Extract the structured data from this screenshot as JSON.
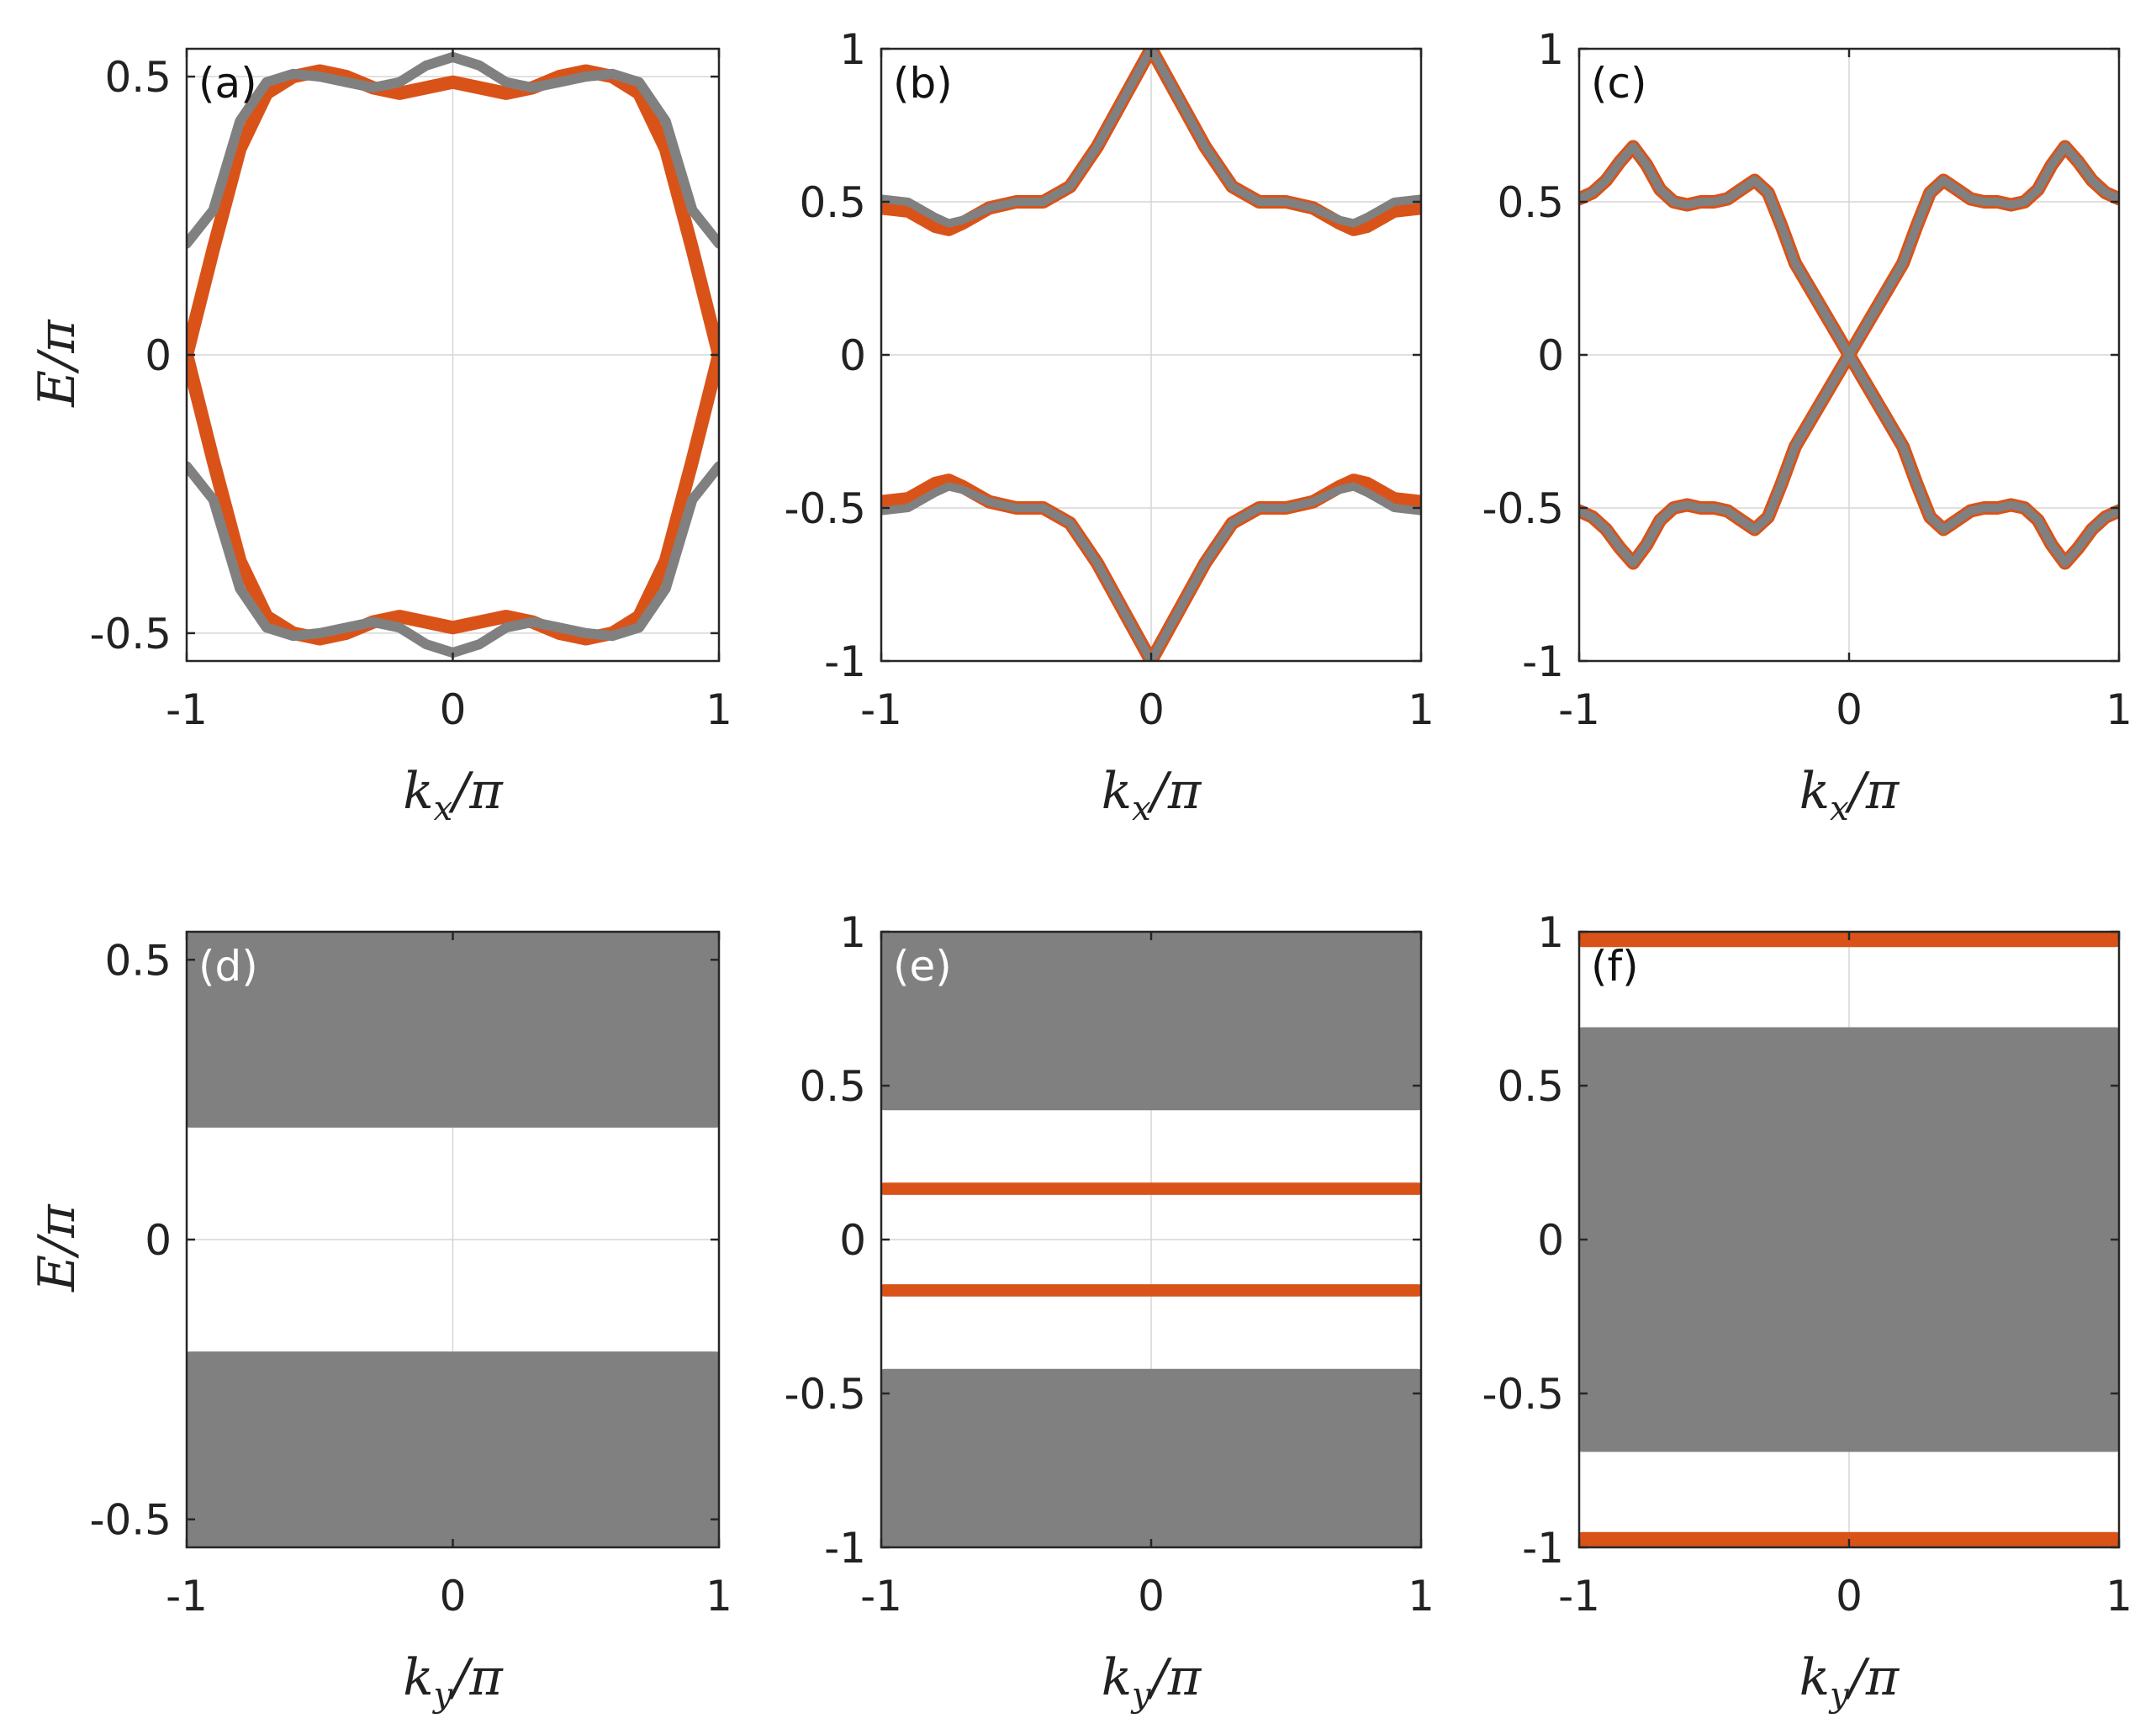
{
  "colors": {
    "orange": "#d95319",
    "gray": "#808080",
    "blue": "#0072bd",
    "frame": "#262626",
    "grid": "#d6d6d6"
  },
  "chart_data": [
    {
      "id": "a",
      "type": "line",
      "label": "(a)",
      "label_color": "#111111",
      "xlabel": "k_x/π",
      "ylabel": "E/π",
      "show_ylabel": true,
      "xlim": [
        -1,
        1
      ],
      "ylim": [
        -0.55,
        0.55
      ],
      "xticks": [
        -1,
        0,
        1
      ],
      "xtick_labels": [
        "-1",
        "0",
        "1"
      ],
      "yticks": [
        -0.5,
        0,
        0.5
      ],
      "ytick_labels": [
        "-0.5",
        "0",
        "0.5"
      ],
      "series": [
        {
          "name": "edge-state-upper",
          "color": "orange",
          "width": 16,
          "x": [
            -1.0,
            -0.9,
            -0.8,
            -0.7,
            -0.6,
            -0.5,
            -0.4,
            -0.3,
            -0.2,
            -0.1,
            0.0,
            0.1,
            0.2,
            0.3,
            0.4,
            0.5,
            0.6,
            0.7,
            0.8,
            0.9,
            1.0
          ],
          "y": [
            0.0,
            0.19,
            0.37,
            0.47,
            0.5,
            0.51,
            0.5,
            0.48,
            0.47,
            0.48,
            0.49,
            0.48,
            0.47,
            0.48,
            0.5,
            0.51,
            0.5,
            0.47,
            0.37,
            0.19,
            0.0
          ]
        },
        {
          "name": "edge-state-lower",
          "color": "orange",
          "width": 16,
          "x": [
            -1.0,
            -0.9,
            -0.8,
            -0.7,
            -0.6,
            -0.5,
            -0.4,
            -0.3,
            -0.2,
            -0.1,
            0.0,
            0.1,
            0.2,
            0.3,
            0.4,
            0.5,
            0.6,
            0.7,
            0.8,
            0.9,
            1.0
          ],
          "y": [
            0.0,
            -0.19,
            -0.37,
            -0.47,
            -0.5,
            -0.51,
            -0.5,
            -0.48,
            -0.47,
            -0.48,
            -0.49,
            -0.48,
            -0.47,
            -0.48,
            -0.5,
            -0.51,
            -0.5,
            -0.47,
            -0.37,
            -0.19,
            0.0
          ]
        },
        {
          "name": "bulk-band-upper",
          "color": "gray",
          "width": 12,
          "x": [
            -1.0,
            -0.9,
            -0.8,
            -0.7,
            -0.6,
            -0.5,
            -0.4,
            -0.3,
            -0.2,
            -0.1,
            0.0,
            0.1,
            0.2,
            0.3,
            0.4,
            0.5,
            0.6,
            0.7,
            0.8,
            0.9,
            1.0
          ],
          "y": [
            0.2,
            0.26,
            0.42,
            0.49,
            0.505,
            0.5,
            0.49,
            0.48,
            0.49,
            0.52,
            0.535,
            0.52,
            0.49,
            0.48,
            0.49,
            0.5,
            0.505,
            0.49,
            0.42,
            0.26,
            0.2
          ]
        },
        {
          "name": "bulk-band-lower",
          "color": "gray",
          "width": 12,
          "x": [
            -1.0,
            -0.9,
            -0.8,
            -0.7,
            -0.6,
            -0.5,
            -0.4,
            -0.3,
            -0.2,
            -0.1,
            0.0,
            0.1,
            0.2,
            0.3,
            0.4,
            0.5,
            0.6,
            0.7,
            0.8,
            0.9,
            1.0
          ],
          "y": [
            -0.2,
            -0.26,
            -0.42,
            -0.49,
            -0.505,
            -0.5,
            -0.49,
            -0.48,
            -0.49,
            -0.52,
            -0.535,
            -0.52,
            -0.49,
            -0.48,
            -0.49,
            -0.5,
            -0.505,
            -0.49,
            -0.42,
            -0.26,
            -0.2
          ]
        }
      ],
      "bands": []
    },
    {
      "id": "b",
      "type": "line",
      "label": "(b)",
      "label_color": "#111111",
      "xlabel": "k_x/π",
      "ylabel": "E/π",
      "show_ylabel": false,
      "xlim": [
        -1,
        1
      ],
      "ylim": [
        -1,
        1
      ],
      "xticks": [
        -1,
        0,
        1
      ],
      "xtick_labels": [
        "-1",
        "0",
        "1"
      ],
      "yticks": [
        -1,
        -0.5,
        0,
        0.5,
        1
      ],
      "ytick_labels": [
        "-1",
        "-0.5",
        "0",
        "0.5",
        "1"
      ],
      "series": [
        {
          "name": "band-upper-orange",
          "color": "orange",
          "width": 16,
          "x": [
            -1.0,
            -0.9,
            -0.8,
            -0.75,
            -0.7,
            -0.6,
            -0.5,
            -0.4,
            -0.3,
            -0.2,
            -0.1,
            0.0,
            0.1,
            0.2,
            0.3,
            0.4,
            0.5,
            0.6,
            0.7,
            0.75,
            0.8,
            0.9,
            1.0
          ],
          "y": [
            0.48,
            0.47,
            0.42,
            0.41,
            0.43,
            0.48,
            0.5,
            0.5,
            0.55,
            0.68,
            0.84,
            1.0,
            0.84,
            0.68,
            0.55,
            0.5,
            0.5,
            0.48,
            0.43,
            0.41,
            0.42,
            0.47,
            0.48
          ]
        },
        {
          "name": "band-upper-gray",
          "color": "gray",
          "width": 10,
          "x": [
            -1.0,
            -0.9,
            -0.8,
            -0.75,
            -0.7,
            -0.6,
            -0.5,
            -0.4,
            -0.3,
            -0.2,
            -0.1,
            0.0,
            0.1,
            0.2,
            0.3,
            0.4,
            0.5,
            0.6,
            0.7,
            0.75,
            0.8,
            0.9,
            1.0
          ],
          "y": [
            0.51,
            0.5,
            0.45,
            0.43,
            0.44,
            0.48,
            0.5,
            0.5,
            0.55,
            0.68,
            0.84,
            1.0,
            0.84,
            0.68,
            0.55,
            0.5,
            0.5,
            0.48,
            0.44,
            0.43,
            0.45,
            0.5,
            0.51
          ]
        },
        {
          "name": "band-lower-orange",
          "color": "orange",
          "width": 16,
          "x": [
            -1.0,
            -0.9,
            -0.8,
            -0.75,
            -0.7,
            -0.6,
            -0.5,
            -0.4,
            -0.3,
            -0.2,
            -0.1,
            0.0,
            0.1,
            0.2,
            0.3,
            0.4,
            0.5,
            0.6,
            0.7,
            0.75,
            0.8,
            0.9,
            1.0
          ],
          "y": [
            -0.48,
            -0.47,
            -0.42,
            -0.41,
            -0.43,
            -0.48,
            -0.5,
            -0.5,
            -0.55,
            -0.68,
            -0.84,
            -1.0,
            -0.84,
            -0.68,
            -0.55,
            -0.5,
            -0.5,
            -0.48,
            -0.43,
            -0.41,
            -0.42,
            -0.47,
            -0.48
          ]
        },
        {
          "name": "band-lower-gray",
          "color": "gray",
          "width": 10,
          "x": [
            -1.0,
            -0.9,
            -0.8,
            -0.75,
            -0.7,
            -0.6,
            -0.5,
            -0.4,
            -0.3,
            -0.2,
            -0.1,
            0.0,
            0.1,
            0.2,
            0.3,
            0.4,
            0.5,
            0.6,
            0.7,
            0.75,
            0.8,
            0.9,
            1.0
          ],
          "y": [
            -0.51,
            -0.5,
            -0.45,
            -0.43,
            -0.44,
            -0.48,
            -0.5,
            -0.5,
            -0.55,
            -0.68,
            -0.84,
            -1.0,
            -0.84,
            -0.68,
            -0.55,
            -0.5,
            -0.5,
            -0.48,
            -0.44,
            -0.43,
            -0.45,
            -0.5,
            -0.51
          ]
        }
      ],
      "bands": []
    },
    {
      "id": "c",
      "type": "line",
      "label": "(c)",
      "label_color": "#111111",
      "xlabel": "k_x/π",
      "ylabel": "E/π",
      "show_ylabel": false,
      "xlim": [
        -1,
        1
      ],
      "ylim": [
        -1,
        1
      ],
      "xticks": [
        -1,
        0,
        1
      ],
      "xtick_labels": [
        "-1",
        "0",
        "1"
      ],
      "yticks": [
        -1,
        -0.5,
        0,
        0.5,
        1
      ],
      "ytick_labels": [
        "-1",
        "-0.5",
        "0",
        "0.5",
        "1"
      ],
      "series": [
        {
          "name": "band-crossing-down-orange",
          "color": "orange",
          "width": 16,
          "x": [
            -1.0,
            -0.95,
            -0.9,
            -0.85,
            -0.8,
            -0.75,
            -0.7,
            -0.65,
            -0.6,
            -0.55,
            -0.5,
            -0.45,
            -0.4,
            -0.35,
            -0.3,
            -0.25,
            -0.2,
            -0.1,
            0.0,
            0.1,
            0.2,
            0.25,
            0.3,
            0.35,
            0.4,
            0.45,
            0.5,
            0.55,
            0.6,
            0.65,
            0.7,
            0.75,
            0.8,
            0.85,
            0.9,
            0.95,
            1.0
          ],
          "y": [
            0.51,
            0.53,
            0.57,
            0.63,
            0.68,
            0.62,
            0.54,
            0.5,
            0.49,
            0.5,
            0.5,
            0.51,
            0.54,
            0.57,
            0.53,
            0.42,
            0.3,
            0.15,
            0.0,
            -0.15,
            -0.3,
            -0.42,
            -0.53,
            -0.57,
            -0.54,
            -0.51,
            -0.5,
            -0.5,
            -0.49,
            -0.5,
            -0.54,
            -0.62,
            -0.68,
            -0.63,
            -0.57,
            -0.53,
            -0.51
          ]
        },
        {
          "name": "band-crossing-up-orange",
          "color": "orange",
          "width": 16,
          "x": [
            -1.0,
            -0.95,
            -0.9,
            -0.85,
            -0.8,
            -0.75,
            -0.7,
            -0.65,
            -0.6,
            -0.55,
            -0.5,
            -0.45,
            -0.4,
            -0.35,
            -0.3,
            -0.25,
            -0.2,
            -0.1,
            0.0,
            0.1,
            0.2,
            0.25,
            0.3,
            0.35,
            0.4,
            0.45,
            0.5,
            0.55,
            0.6,
            0.65,
            0.7,
            0.75,
            0.8,
            0.85,
            0.9,
            0.95,
            1.0
          ],
          "y": [
            -0.51,
            -0.53,
            -0.57,
            -0.63,
            -0.68,
            -0.62,
            -0.54,
            -0.5,
            -0.49,
            -0.5,
            -0.5,
            -0.51,
            -0.54,
            -0.57,
            -0.53,
            -0.42,
            -0.3,
            -0.15,
            0.0,
            0.15,
            0.3,
            0.42,
            0.53,
            0.57,
            0.54,
            0.51,
            0.5,
            0.5,
            0.49,
            0.5,
            0.54,
            0.62,
            0.68,
            0.63,
            0.57,
            0.53,
            0.51
          ]
        },
        {
          "name": "band-crossing-down-gray",
          "color": "gray",
          "width": 10,
          "x": [
            -1.0,
            -0.95,
            -0.9,
            -0.85,
            -0.8,
            -0.75,
            -0.7,
            -0.65,
            -0.6,
            -0.55,
            -0.5,
            -0.45,
            -0.4,
            -0.35,
            -0.3,
            -0.25,
            -0.2,
            -0.1,
            0.0,
            0.1,
            0.2,
            0.25,
            0.3,
            0.35,
            0.4,
            0.45,
            0.5,
            0.55,
            0.6,
            0.65,
            0.7,
            0.75,
            0.8,
            0.85,
            0.9,
            0.95,
            1.0
          ],
          "y": [
            0.51,
            0.53,
            0.57,
            0.63,
            0.68,
            0.62,
            0.54,
            0.5,
            0.49,
            0.5,
            0.5,
            0.51,
            0.54,
            0.57,
            0.53,
            0.42,
            0.3,
            0.15,
            0.0,
            -0.15,
            -0.3,
            -0.42,
            -0.53,
            -0.57,
            -0.54,
            -0.51,
            -0.5,
            -0.5,
            -0.49,
            -0.5,
            -0.54,
            -0.62,
            -0.68,
            -0.63,
            -0.57,
            -0.53,
            -0.51
          ]
        },
        {
          "name": "band-crossing-up-gray",
          "color": "gray",
          "width": 10,
          "x": [
            -1.0,
            -0.95,
            -0.9,
            -0.85,
            -0.8,
            -0.75,
            -0.7,
            -0.65,
            -0.6,
            -0.55,
            -0.5,
            -0.45,
            -0.4,
            -0.35,
            -0.3,
            -0.25,
            -0.2,
            -0.1,
            0.0,
            0.1,
            0.2,
            0.25,
            0.3,
            0.35,
            0.4,
            0.45,
            0.5,
            0.55,
            0.6,
            0.65,
            0.7,
            0.75,
            0.8,
            0.85,
            0.9,
            0.95,
            1.0
          ],
          "y": [
            -0.51,
            -0.53,
            -0.57,
            -0.63,
            -0.68,
            -0.62,
            -0.54,
            -0.5,
            -0.49,
            -0.5,
            -0.5,
            -0.51,
            -0.54,
            -0.57,
            -0.53,
            -0.42,
            -0.3,
            -0.15,
            0.0,
            0.15,
            0.3,
            0.42,
            0.53,
            0.57,
            0.54,
            0.51,
            0.5,
            0.5,
            0.49,
            0.5,
            0.54,
            0.62,
            0.68,
            0.63,
            0.57,
            0.53,
            0.51
          ]
        }
      ],
      "bands": []
    },
    {
      "id": "d",
      "type": "area",
      "label": "(d)",
      "label_color": "#ffffff",
      "xlabel": "k_y/π",
      "ylabel": "E/π",
      "show_ylabel": true,
      "xlim": [
        -1,
        1
      ],
      "ylim": [
        -0.55,
        0.55
      ],
      "xticks": [
        -1,
        0,
        1
      ],
      "xtick_labels": [
        "-1",
        "0",
        "1"
      ],
      "yticks": [
        -0.5,
        0,
        0.5
      ],
      "ytick_labels": [
        "-0.5",
        "0",
        "0.5"
      ],
      "series": [],
      "bands": [
        {
          "name": "bulk-band-upper",
          "color": "gray",
          "y0": 0.2,
          "y1": 0.55
        },
        {
          "name": "bulk-band-lower",
          "color": "gray",
          "y0": -0.55,
          "y1": -0.2
        }
      ]
    },
    {
      "id": "e",
      "type": "area",
      "label": "(e)",
      "label_color": "#ffffff",
      "xlabel": "k_y/π",
      "ylabel": "E/π",
      "show_ylabel": false,
      "xlim": [
        -1,
        1
      ],
      "ylim": [
        -1,
        1
      ],
      "xticks": [
        -1,
        0,
        1
      ],
      "xtick_labels": [
        "-1",
        "0",
        "1"
      ],
      "yticks": [
        -1,
        -0.5,
        0,
        0.5,
        1
      ],
      "ytick_labels": [
        "-1",
        "-0.5",
        "0",
        "0.5",
        "1"
      ],
      "series": [],
      "bands": [
        {
          "name": "bulk-band-upper",
          "color": "gray",
          "y0": 0.42,
          "y1": 1.0
        },
        {
          "name": "edge-state-upper",
          "color": "orange",
          "y0": 0.145,
          "y1": 0.185
        },
        {
          "name": "edge-state-lower",
          "color": "orange",
          "y0": -0.185,
          "y1": -0.145
        },
        {
          "name": "bulk-band-lower",
          "color": "gray",
          "y0": -1.0,
          "y1": -0.42
        }
      ]
    },
    {
      "id": "f",
      "type": "area",
      "label": "(f)",
      "label_color": "#111111",
      "xlabel": "k_y/π",
      "ylabel": "E/π",
      "show_ylabel": false,
      "xlim": [
        -1,
        1
      ],
      "ylim": [
        -1,
        1
      ],
      "xticks": [
        -1,
        0,
        1
      ],
      "xtick_labels": [
        "-1",
        "0",
        "1"
      ],
      "yticks": [
        -1,
        -0.5,
        0,
        0.5,
        1
      ],
      "ytick_labels": [
        "-1",
        "-0.5",
        "0",
        "0.5",
        "1"
      ],
      "series": [],
      "bands": [
        {
          "name": "edge-state-upper",
          "color": "orange",
          "y0": 0.95,
          "y1": 1.03
        },
        {
          "name": "bulk-band",
          "color": "gray",
          "y0": -0.69,
          "y1": 0.69
        },
        {
          "name": "edge-state-lower",
          "color": "orange",
          "y0": -1.03,
          "y1": -0.95
        }
      ]
    }
  ]
}
